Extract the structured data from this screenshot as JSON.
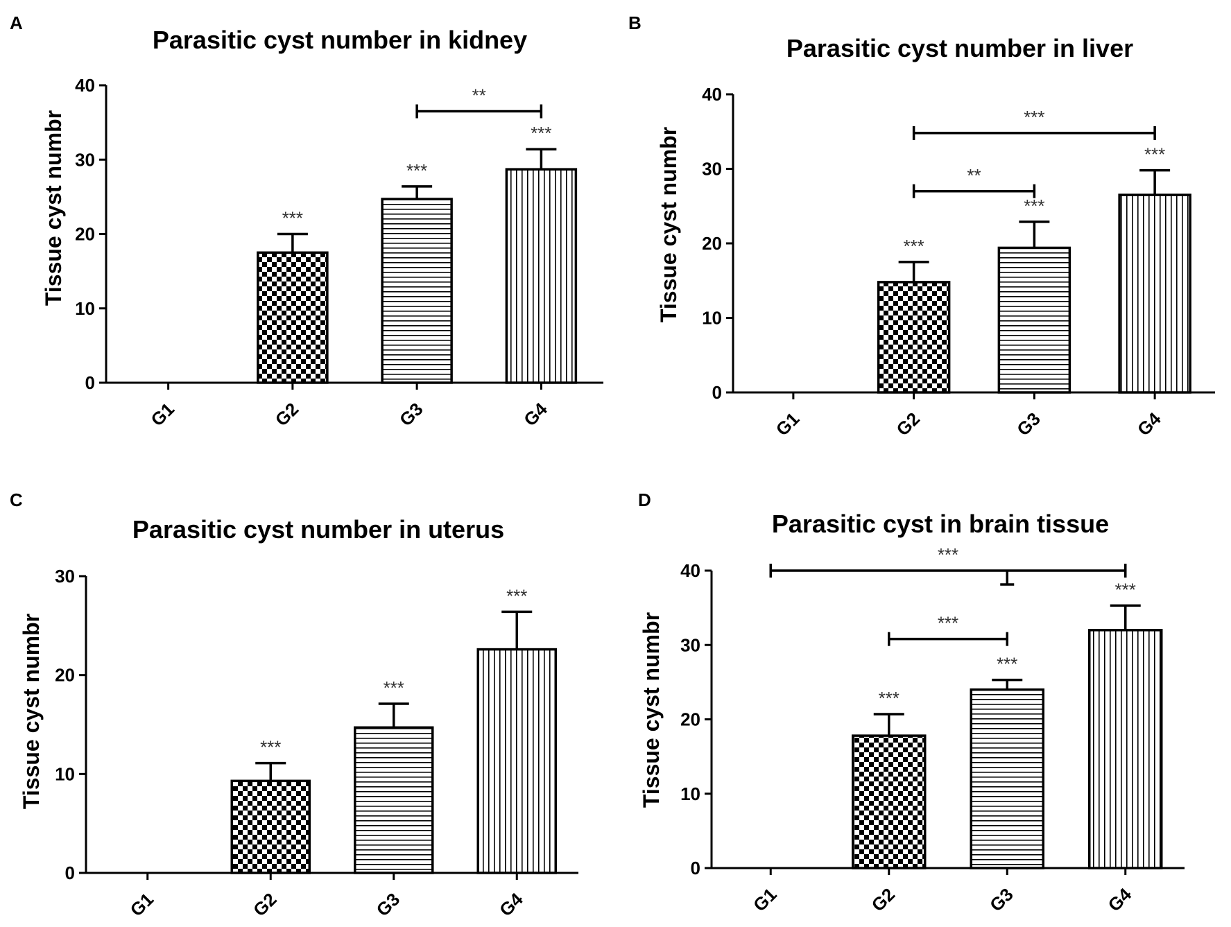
{
  "figure": {
    "panels": [
      {
        "label": "A",
        "title": "Parasitic cyst number in kidney"
      },
      {
        "label": "B",
        "title": "Parasitic cyst number in liver"
      },
      {
        "label": "C",
        "title": "Parasitic cyst number in uterus"
      },
      {
        "label": "D",
        "title": "Parasitic cyst in brain tissue"
      }
    ]
  },
  "colors": {
    "ink": "#000000",
    "star": "#333333",
    "fill": "#ffffff"
  },
  "chart_data": [
    {
      "type": "bar",
      "panel": "A",
      "title": "Parasitic cyst number in kidney",
      "xlabel": "",
      "ylabel": "Tissue cyst numbr",
      "ylim": [
        0,
        40
      ],
      "yticks": [
        0,
        10,
        20,
        30,
        40
      ],
      "categories": [
        "G1",
        "G2",
        "G3",
        "G4"
      ],
      "patterns": [
        "none",
        "checker",
        "horizontal",
        "vertical"
      ],
      "values": [
        0,
        17.5,
        24.7,
        28.7
      ],
      "errors": [
        0,
        2.5,
        1.7,
        2.7
      ],
      "bar_labels": [
        "",
        "***",
        "***",
        "***"
      ],
      "brackets": [
        {
          "from": "G3",
          "to": "G4",
          "y": 36.5,
          "label": "**"
        }
      ]
    },
    {
      "type": "bar",
      "panel": "B",
      "title": "Parasitic cyst number in liver",
      "xlabel": "",
      "ylabel": "Tissue cyst numbr",
      "ylim": [
        0,
        40
      ],
      "yticks": [
        0,
        10,
        20,
        30,
        40
      ],
      "categories": [
        "G1",
        "G2",
        "G3",
        "G4"
      ],
      "patterns": [
        "none",
        "checker",
        "horizontal",
        "vertical"
      ],
      "values": [
        0,
        14.8,
        19.4,
        26.5
      ],
      "errors": [
        0,
        2.7,
        3.5,
        3.3
      ],
      "bar_labels": [
        "",
        "***",
        "***",
        "***"
      ],
      "brackets": [
        {
          "from": "G2",
          "to": "G4",
          "y": 34.8,
          "label": "***"
        },
        {
          "from": "G2",
          "to": "G3",
          "y": 27.0,
          "label": "**"
        }
      ]
    },
    {
      "type": "bar",
      "panel": "C",
      "title": "Parasitic cyst number in uterus",
      "xlabel": "",
      "ylabel": "Tissue cyst numbr",
      "ylim": [
        0,
        30
      ],
      "yticks": [
        0,
        10,
        20,
        30
      ],
      "categories": [
        "G1",
        "G2",
        "G3",
        "G4"
      ],
      "patterns": [
        "none",
        "checker",
        "horizontal",
        "vertical"
      ],
      "values": [
        0,
        9.3,
        14.7,
        22.6
      ],
      "errors": [
        0,
        1.8,
        2.4,
        3.8
      ],
      "bar_labels": [
        "",
        "***",
        "***",
        "***"
      ],
      "brackets": []
    },
    {
      "type": "bar",
      "panel": "D",
      "title": "Parasitic cyst in brain tissue",
      "xlabel": "",
      "ylabel": "Tissue cyst numbr",
      "ylim": [
        0,
        40
      ],
      "yticks": [
        0,
        10,
        20,
        30,
        40
      ],
      "categories": [
        "G1",
        "G2",
        "G3",
        "G4"
      ],
      "patterns": [
        "none",
        "checker",
        "horizontal",
        "vertical"
      ],
      "values": [
        0,
        17.8,
        24.0,
        32.0
      ],
      "errors": [
        0,
        2.9,
        1.3,
        3.3
      ],
      "bar_labels": [
        "",
        "***",
        "***",
        "***"
      ],
      "brackets": [
        {
          "from": "G1",
          "to": "G4",
          "y": 40.0,
          "label": "***",
          "stem": "G3"
        },
        {
          "from": "G2",
          "to": "G3",
          "y": 30.8,
          "label": "***"
        }
      ]
    }
  ]
}
